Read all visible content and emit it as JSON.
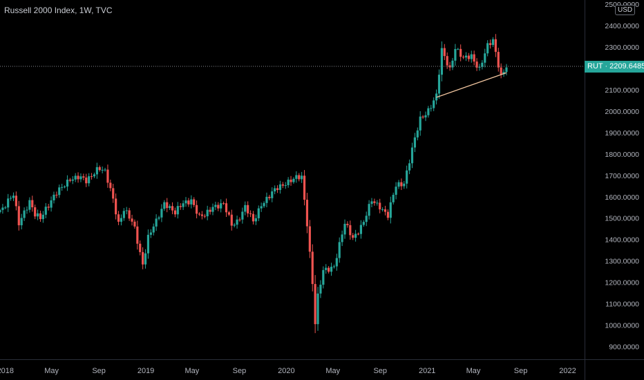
{
  "header": {
    "title": "Russell 2000 Index, 1W, TVC",
    "currency_badge": "USD"
  },
  "price_tag": {
    "symbol": "RUT",
    "value": "2209.6485",
    "label": "RUT · 2209.6485"
  },
  "colors": {
    "background": "#000000",
    "up": "#26a69a",
    "down": "#ef5350",
    "trendline": "#f2c6a0",
    "axis_text": "#b2b5be"
  },
  "chart_data": {
    "type": "candlestick",
    "title": "Russell 2000 Index, 1W, TVC",
    "frequency": "weekly",
    "x_range": [
      "2017-12-18",
      "2022-02-14"
    ],
    "ylim": [
      840,
      2520
    ],
    "y_tick_labels": [
      "900.0000",
      "1000.0000",
      "1100.0000",
      "1200.0000",
      "1300.0000",
      "1400.0000",
      "1500.0000",
      "1600.0000",
      "1700.0000",
      "1800.0000",
      "1900.0000",
      "2000.0000",
      "2100.0000",
      "2200.0000",
      "2300.0000",
      "2400.0000",
      "2500.0000"
    ],
    "x_tick_labels": [
      {
        "label": "2018",
        "date": "2018-01-01"
      },
      {
        "label": "May",
        "date": "2018-05-01"
      },
      {
        "label": "Sep",
        "date": "2018-09-01"
      },
      {
        "label": "2019",
        "date": "2019-01-01"
      },
      {
        "label": "May",
        "date": "2019-05-01"
      },
      {
        "label": "Sep",
        "date": "2019-09-01"
      },
      {
        "label": "2020",
        "date": "2020-01-01"
      },
      {
        "label": "May",
        "date": "2020-05-01"
      },
      {
        "label": "Sep",
        "date": "2020-09-01"
      },
      {
        "label": "2021",
        "date": "2021-01-01"
      },
      {
        "label": "May",
        "date": "2021-05-01"
      },
      {
        "label": "Sep",
        "date": "2021-09-01"
      },
      {
        "label": "2022",
        "date": "2022-01-01"
      }
    ],
    "last_price": 2209.6485,
    "gridlines": false,
    "trendline": {
      "from": {
        "date": "2021-01-25",
        "value": 2065
      },
      "to": {
        "date": "2021-07-26",
        "value": 2180
      }
    },
    "weekly_closes": [
      {
        "date": "2017-12-18",
        "close": 1540
      },
      {
        "date": "2018-01-01",
        "close": 1560
      },
      {
        "date": "2018-01-22",
        "close": 1605
      },
      {
        "date": "2018-02-05",
        "close": 1480
      },
      {
        "date": "2018-02-19",
        "close": 1535
      },
      {
        "date": "2018-03-05",
        "close": 1575
      },
      {
        "date": "2018-03-19",
        "close": 1510
      },
      {
        "date": "2018-04-02",
        "close": 1500
      },
      {
        "date": "2018-04-16",
        "close": 1550
      },
      {
        "date": "2018-05-07",
        "close": 1600
      },
      {
        "date": "2018-05-28",
        "close": 1640
      },
      {
        "date": "2018-06-18",
        "close": 1690
      },
      {
        "date": "2018-07-09",
        "close": 1690
      },
      {
        "date": "2018-07-30",
        "close": 1670
      },
      {
        "date": "2018-08-20",
        "close": 1720
      },
      {
        "date": "2018-08-31",
        "close": 1740
      },
      {
        "date": "2018-09-17",
        "close": 1710
      },
      {
        "date": "2018-10-08",
        "close": 1590
      },
      {
        "date": "2018-10-22",
        "close": 1480
      },
      {
        "date": "2018-11-05",
        "close": 1540
      },
      {
        "date": "2018-11-19",
        "close": 1500
      },
      {
        "date": "2018-12-03",
        "close": 1450
      },
      {
        "date": "2018-12-17",
        "close": 1340
      },
      {
        "date": "2018-12-24",
        "close": 1290
      },
      {
        "date": "2019-01-07",
        "close": 1410
      },
      {
        "date": "2019-01-28",
        "close": 1480
      },
      {
        "date": "2019-02-19",
        "close": 1580
      },
      {
        "date": "2019-03-18",
        "close": 1520
      },
      {
        "date": "2019-04-08",
        "close": 1570
      },
      {
        "date": "2019-04-29",
        "close": 1590
      },
      {
        "date": "2019-05-20",
        "close": 1500
      },
      {
        "date": "2019-06-03",
        "close": 1510
      },
      {
        "date": "2019-06-24",
        "close": 1560
      },
      {
        "date": "2019-07-22",
        "close": 1560
      },
      {
        "date": "2019-08-12",
        "close": 1470
      },
      {
        "date": "2019-08-26",
        "close": 1490
      },
      {
        "date": "2019-09-16",
        "close": 1550
      },
      {
        "date": "2019-10-07",
        "close": 1480
      },
      {
        "date": "2019-10-28",
        "close": 1570
      },
      {
        "date": "2019-11-18",
        "close": 1600
      },
      {
        "date": "2019-12-09",
        "close": 1640
      },
      {
        "date": "2019-12-30",
        "close": 1670
      },
      {
        "date": "2020-01-20",
        "close": 1680
      },
      {
        "date": "2020-02-10",
        "close": 1690
      },
      {
        "date": "2020-02-24",
        "close": 1480
      },
      {
        "date": "2020-03-09",
        "close": 1200
      },
      {
        "date": "2020-03-16",
        "close": 1010
      },
      {
        "date": "2020-03-23",
        "close": 1130
      },
      {
        "date": "2020-04-06",
        "close": 1250
      },
      {
        "date": "2020-05-04",
        "close": 1280
      },
      {
        "date": "2020-06-01",
        "close": 1470
      },
      {
        "date": "2020-06-22",
        "close": 1410
      },
      {
        "date": "2020-07-20",
        "close": 1480
      },
      {
        "date": "2020-08-10",
        "close": 1580
      },
      {
        "date": "2020-08-31",
        "close": 1560
      },
      {
        "date": "2020-09-21",
        "close": 1510
      },
      {
        "date": "2020-10-12",
        "close": 1650
      },
      {
        "date": "2020-11-02",
        "close": 1670
      },
      {
        "date": "2020-11-23",
        "close": 1820
      },
      {
        "date": "2020-12-14",
        "close": 1960
      },
      {
        "date": "2021-01-04",
        "close": 2010
      },
      {
        "date": "2021-01-25",
        "close": 2070
      },
      {
        "date": "2021-02-08",
        "close": 2280
      },
      {
        "date": "2021-03-01",
        "close": 2200
      },
      {
        "date": "2021-03-15",
        "close": 2300
      },
      {
        "date": "2021-04-05",
        "close": 2240
      },
      {
        "date": "2021-04-26",
        "close": 2260
      },
      {
        "date": "2021-05-17",
        "close": 2200
      },
      {
        "date": "2021-06-07",
        "close": 2300
      },
      {
        "date": "2021-06-21",
        "close": 2330
      },
      {
        "date": "2021-07-12",
        "close": 2170
      },
      {
        "date": "2021-07-26",
        "close": 2210
      }
    ]
  }
}
